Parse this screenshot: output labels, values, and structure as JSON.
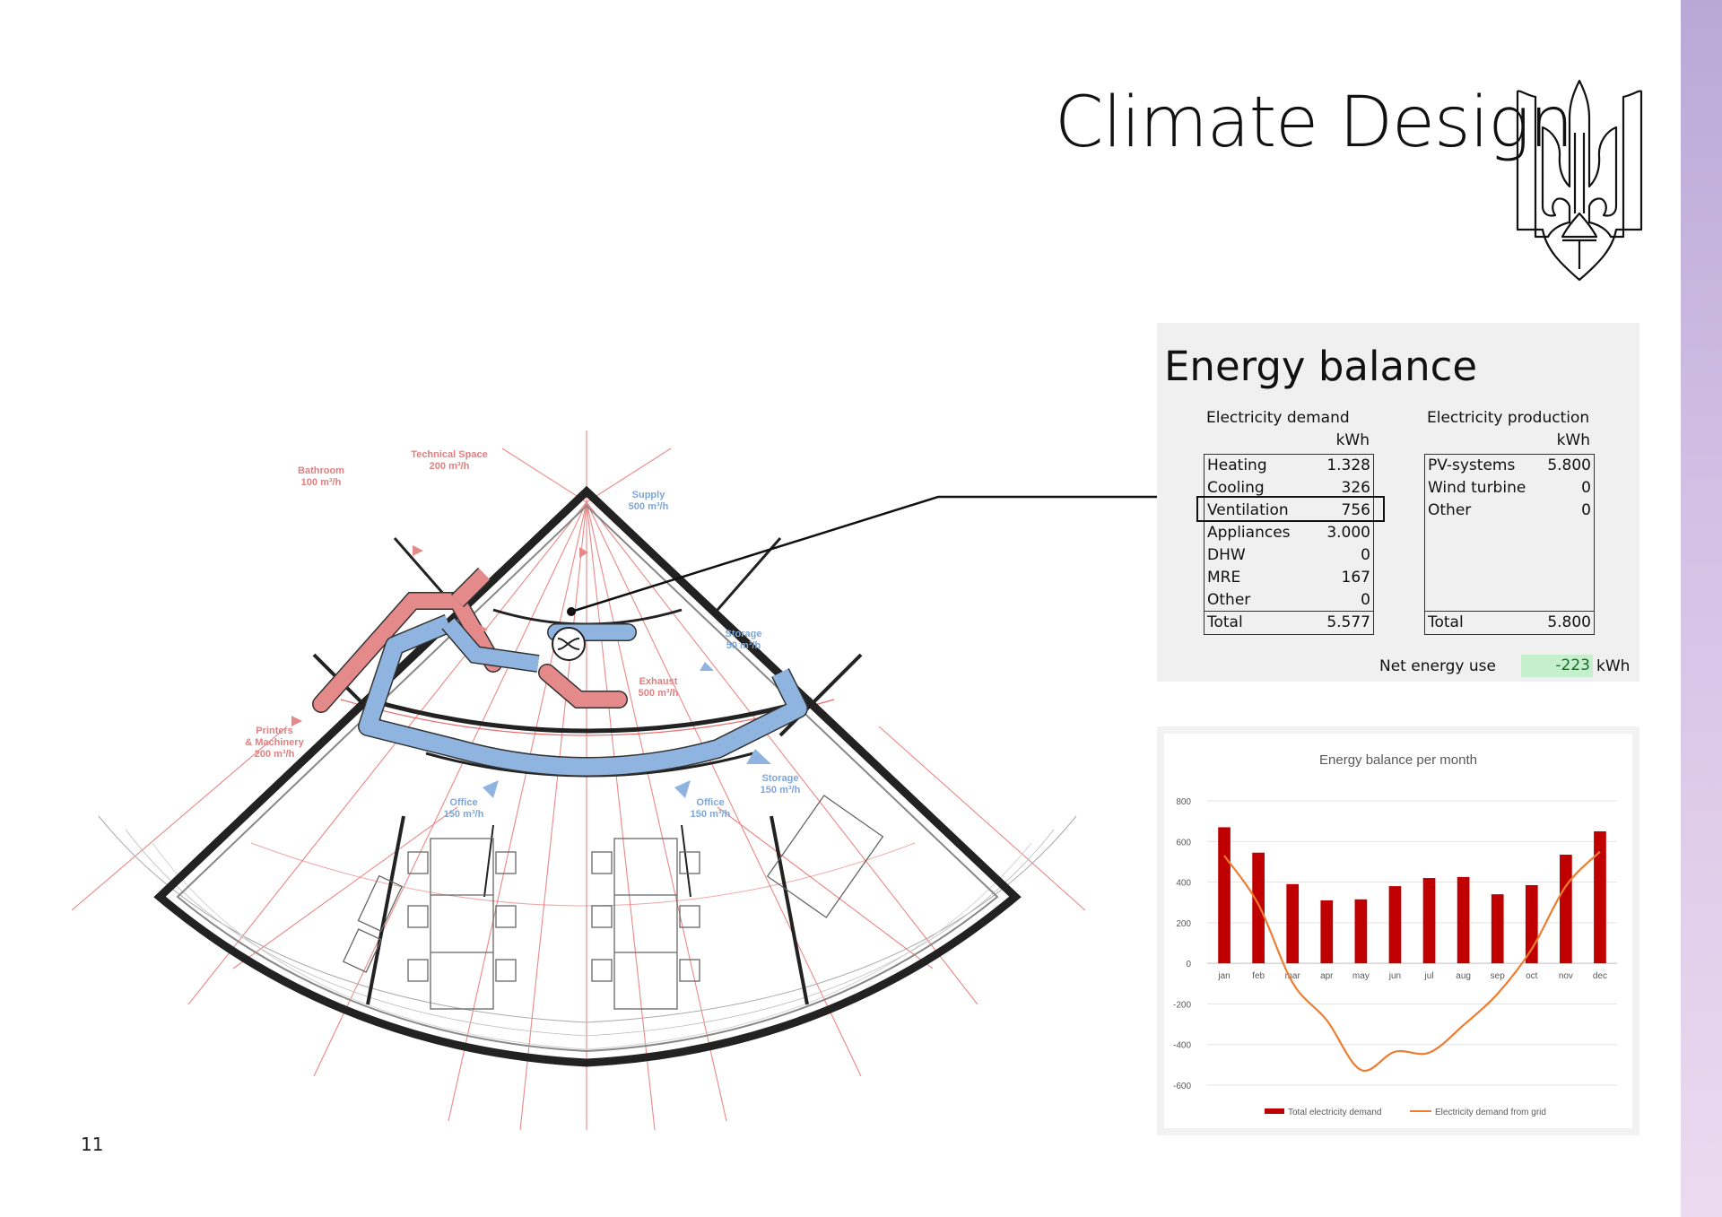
{
  "page": {
    "title": "Climate Design",
    "page_number": "11",
    "emblem_icon": "trident-emblem-icon"
  },
  "plan": {
    "rooms": [
      {
        "name": "Technical Space",
        "flow": "200 m³/h",
        "color": "#e08080"
      },
      {
        "name": "Bathroom",
        "flow": "100 m³/h",
        "color": "#e08080"
      },
      {
        "name": "Supply",
        "flow": "500 m³/h",
        "color": "#7ea6d8"
      },
      {
        "name": "Storage",
        "flow": "50 m³/h",
        "color": "#7ea6d8"
      },
      {
        "name": "Exhaust",
        "flow": "500 m³/h",
        "color": "#e08080"
      },
      {
        "name": "Printers & Machinery",
        "flow": "200 m³/h",
        "color": "#e08080"
      },
      {
        "name": "Storage",
        "flow": "150 m³/h",
        "color": "#7ea6d8"
      },
      {
        "name": "Office",
        "flow": "150 m³/h",
        "color": "#7ea6d8"
      },
      {
        "name": "Office",
        "flow": "150 m³/h",
        "color": "#7ea6d8"
      }
    ],
    "printers_line1": "Printers",
    "printers_line2": "& Machinery"
  },
  "energy_balance": {
    "title": "Energy balance",
    "demand": {
      "heading": "Electricity demand",
      "unit": "kWh",
      "rows": [
        {
          "label": "Heating",
          "value": "1.328"
        },
        {
          "label": "Cooling",
          "value": "326"
        },
        {
          "label": "Ventilation",
          "value": "756"
        },
        {
          "label": "Appliances",
          "value": "3.000"
        },
        {
          "label": "DHW",
          "value": "0"
        },
        {
          "label": "MRE",
          "value": "167"
        },
        {
          "label": "Other",
          "value": "0"
        }
      ],
      "total_label": "Total",
      "total_value": "5.577"
    },
    "production": {
      "heading": "Electricity production",
      "unit": "kWh",
      "rows": [
        {
          "label": "PV-systems",
          "value": "5.800"
        },
        {
          "label": "Wind turbine",
          "value": "0"
        },
        {
          "label": "Other",
          "value": "0"
        }
      ],
      "total_label": "Total",
      "total_value": "5.800"
    },
    "net_label": "Net energy use",
    "net_value": "-223",
    "net_unit": "kWh",
    "highlighted_row": "Ventilation"
  },
  "chart_data": {
    "type": "bar",
    "title": "Energy balance per month",
    "categories": [
      "jan",
      "feb",
      "mar",
      "apr",
      "may",
      "jun",
      "jul",
      "aug",
      "sep",
      "oct",
      "nov",
      "dec"
    ],
    "series": [
      {
        "name": "Total electricity demand",
        "type": "bar",
        "color": "#c00000",
        "values": [
          670,
          545,
          390,
          310,
          315,
          380,
          420,
          425,
          340,
          385,
          535,
          650
        ]
      },
      {
        "name": "Electricity demand from grid",
        "type": "line",
        "color": "#ed7d31",
        "values": [
          530,
          290,
          -95,
          -280,
          -525,
          -435,
          -440,
          -305,
          -150,
          70,
          380,
          550
        ]
      }
    ],
    "yticks": [
      800,
      600,
      400,
      200,
      0,
      -200,
      -400,
      -600
    ],
    "ytick_labels": [
      "800",
      "600",
      "400",
      "200",
      "0",
      "-200",
      "-400",
      "-600"
    ],
    "ylim": [
      -600,
      800
    ],
    "grid": true,
    "legend_position": "bottom"
  }
}
